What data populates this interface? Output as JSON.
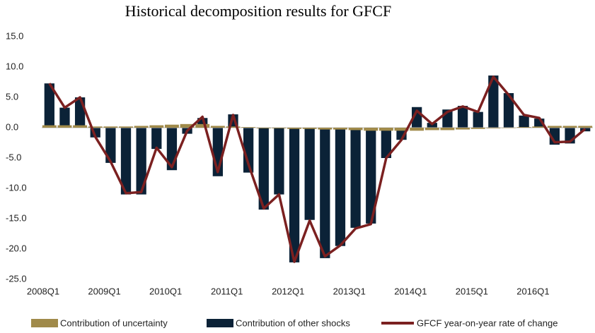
{
  "chart_data": {
    "type": "bar-line",
    "title": "Historical decomposition results for GFCF",
    "categories": [
      "2008Q1",
      null,
      null,
      null,
      "2009Q1",
      null,
      null,
      null,
      "2010Q1",
      null,
      null,
      null,
      "2011Q1",
      null,
      null,
      null,
      "2012Q1",
      null,
      null,
      null,
      "2013Q1",
      null,
      null,
      null,
      "2014Q1",
      null,
      null,
      null,
      "2015Q1",
      null,
      null,
      null,
      "2016Q1",
      null,
      null,
      null
    ],
    "series": [
      {
        "name": "Contribution of uncertainty",
        "kind": "bar",
        "color": "#a08a4a",
        "values": [
          0.4,
          0.4,
          0.4,
          0.2,
          0.2,
          0.2,
          0.3,
          0.4,
          0.5,
          0.6,
          0.6,
          0.3,
          0.2,
          0.1,
          -0.1,
          -0.1,
          -0.2,
          -0.2,
          -0.3,
          -0.3,
          -0.4,
          -0.5,
          -0.5,
          -0.5,
          -0.5,
          -0.4,
          -0.4,
          -0.3,
          -0.2,
          -0.1,
          0.0,
          0.1,
          0.2,
          0.3,
          0.3,
          0.3
        ]
      },
      {
        "name": "Contribution of other shocks",
        "kind": "bar",
        "color": "#0b2237",
        "values": [
          7.3,
          3.3,
          5.0,
          -1.6,
          -5.8,
          -11.0,
          -11.0,
          -3.5,
          -7.0,
          -1.0,
          1.6,
          -8.0,
          2.2,
          -7.4,
          -13.5,
          -11.0,
          -22.2,
          -15.2,
          -21.5,
          -19.5,
          -16.5,
          -15.8,
          -5.0,
          -2.0,
          3.4,
          0.8,
          3.0,
          3.6,
          2.6,
          8.6,
          5.7,
          2.0,
          1.5,
          -2.8,
          -2.6,
          -0.6
        ]
      },
      {
        "name": "GFCF year-on-year rate of change",
        "kind": "line",
        "color": "#7b2020",
        "values": [
          7.3,
          3.3,
          5.0,
          -1.5,
          -5.6,
          -10.8,
          -10.6,
          -3.3,
          -6.5,
          -0.5,
          1.8,
          -7.3,
          2.1,
          -6.0,
          -13.3,
          -11.0,
          -22.1,
          -15.3,
          -21.2,
          -19.4,
          -16.6,
          -15.9,
          -5.0,
          -2.0,
          2.8,
          0.6,
          2.6,
          3.5,
          2.6,
          8.4,
          5.4,
          2.1,
          1.6,
          -2.4,
          -2.3,
          -0.2
        ]
      }
    ],
    "ylim": [
      -25,
      15
    ],
    "yticks": [
      {
        "value": -25,
        "label": "-25.0"
      },
      {
        "value": -20,
        "label": "-20.0"
      },
      {
        "value": -15,
        "label": "-15.0"
      },
      {
        "value": -10,
        "label": "-10.0"
      },
      {
        "value": -5,
        "label": "-5.0"
      },
      {
        "value": 0,
        "label": "0.0"
      },
      {
        "value": 5,
        "label": "5.0"
      },
      {
        "value": 10,
        "label": "10.0"
      },
      {
        "value": 15,
        "label": "15.0"
      }
    ],
    "grid": false,
    "legend": "bottom"
  }
}
